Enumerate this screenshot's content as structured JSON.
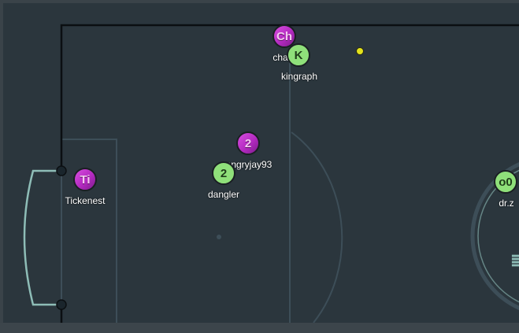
{
  "game": {
    "colors": {
      "background": "#2b363d",
      "border": "#3a4349",
      "field_line": "#3d4e58",
      "goal_line": "#000000",
      "goal_net": "#8ebdb7",
      "red_team": "#c23ad0",
      "blue_team": "#8fe07a",
      "ball": "#e3e31c"
    },
    "players": [
      {
        "team": "red",
        "avatar": "Ch",
        "name": "cha"
      },
      {
        "team": "blue",
        "avatar": "K",
        "name": "kingraph"
      },
      {
        "team": "red",
        "avatar": "2",
        "name": "angryjay93"
      },
      {
        "team": "blue",
        "avatar": "2",
        "name": "dangler"
      },
      {
        "team": "red",
        "avatar": "Ti",
        "name": "Tickenest"
      },
      {
        "team": "blue",
        "avatar": "o0",
        "name": "dr.z"
      }
    ],
    "ball": {
      "color": "yellow"
    },
    "center_logo_glyph": "≣"
  }
}
